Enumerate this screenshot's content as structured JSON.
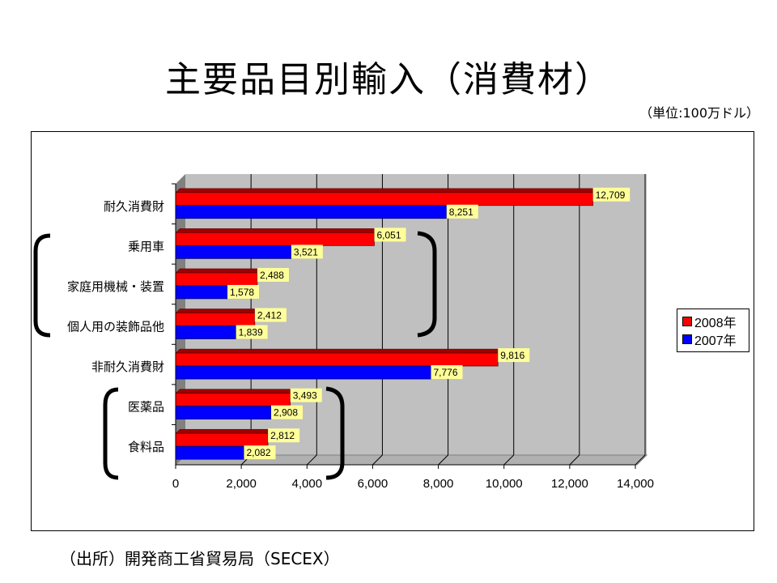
{
  "page": {
    "title": "主要品目別輸入（消費材）",
    "unit_note": "（単位:100万ドル）",
    "source": "（出所）開発商工省貿易局（SECEX）"
  },
  "colors": {
    "series_2008": "#ff0000",
    "series_2007": "#0000ff",
    "plot_background": "#c0c0c0",
    "label_background": "#ffff99"
  },
  "legend": {
    "items": [
      {
        "label": "2008年",
        "color": "#ff0000"
      },
      {
        "label": "2007年",
        "color": "#0000ff"
      }
    ]
  },
  "chart_data": {
    "type": "bar",
    "orientation": "horizontal",
    "title": "主要品目別輸入（消費材）",
    "subtitle": "（単位:100万ドル）",
    "xlabel": "",
    "ylabel": "",
    "categories": [
      "耐久消費財",
      "乗用車",
      "家庭用機械・装置",
      "個人用の装飾品他",
      "非耐久消費財",
      "医薬品",
      "食料品"
    ],
    "series": [
      {
        "name": "2008年",
        "values": [
          12709,
          6051,
          2488,
          2412,
          9816,
          3493,
          2812
        ]
      },
      {
        "name": "2007年",
        "values": [
          8251,
          3521,
          1578,
          1839,
          7776,
          2908,
          2082
        ]
      }
    ],
    "value_labels": {
      "2008年": [
        "12,709",
        "6,051",
        "2,488",
        "2,412",
        "9,816",
        "3,493",
        "2,812"
      ],
      "2007年": [
        "8,251",
        "3,521",
        "1,578",
        "1,839",
        "7,776",
        "2,908",
        "2,082"
      ]
    },
    "xlim": [
      0,
      14000
    ],
    "xticks": [
      "0",
      "2,000",
      "4,000",
      "6,000",
      "8,000",
      "10,000",
      "12,000",
      "14,000"
    ],
    "grid": true,
    "legend_position": "right",
    "annotations": [
      "brackets grouping 乗用車/家庭用機械・装置/個人用の装飾品他 as sub-items of 耐久消費財",
      "brackets grouping 医薬品/食料品 as sub-items of 非耐久消費財"
    ]
  }
}
